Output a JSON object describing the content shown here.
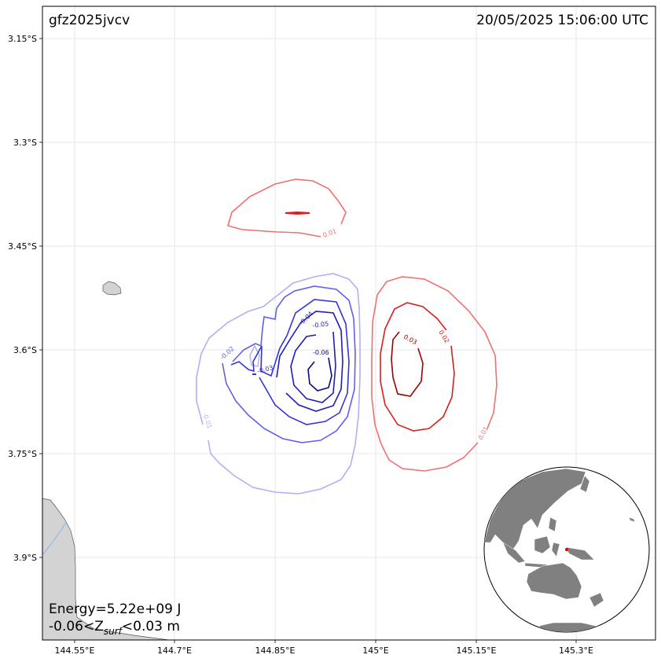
{
  "map": {
    "event_id": "gfz2025jvcv",
    "datetime": "20/05/2025 15:06:00 UTC",
    "energy_text": "Energy=5.22e+09 J",
    "zsurf_prefix": "-0.06<Z",
    "zsurf_sub": "surf",
    "zsurf_suffix": "<0.03 m",
    "x_ticks": [
      "144.55°E",
      "144.7°E",
      "144.85°E",
      "145°E",
      "145.15°E",
      "145.3°E"
    ],
    "y_ticks": [
      "3.15°S",
      "3.3°S",
      "3.45°S",
      "3.6°S",
      "3.75°S",
      "3.9°S"
    ],
    "contour_labels": {
      "pos_001_top": "0.01",
      "pos_001_right": "0.01",
      "pos_002": "0.02",
      "pos_003": "0.03",
      "neg_001": "-0.01",
      "neg_002": "-0.02",
      "neg_003": "-0.03",
      "neg_004": "-0.04",
      "neg_005": "-0.05",
      "neg_006": "-0.06"
    },
    "colors": {
      "positive_light": "#f07070",
      "positive_mid": "#dd1c1c",
      "positive_dark": "#a00000",
      "negative_light": "#b0b0f4",
      "negative_mid": "#6060ec",
      "negative_2": "#3434dc",
      "negative_3": "#1c1cc0",
      "negative_dark": "#0a0a7a",
      "land": "#d3d3d3",
      "globe_land": "#808080",
      "epicenter": "#e00000"
    }
  }
}
